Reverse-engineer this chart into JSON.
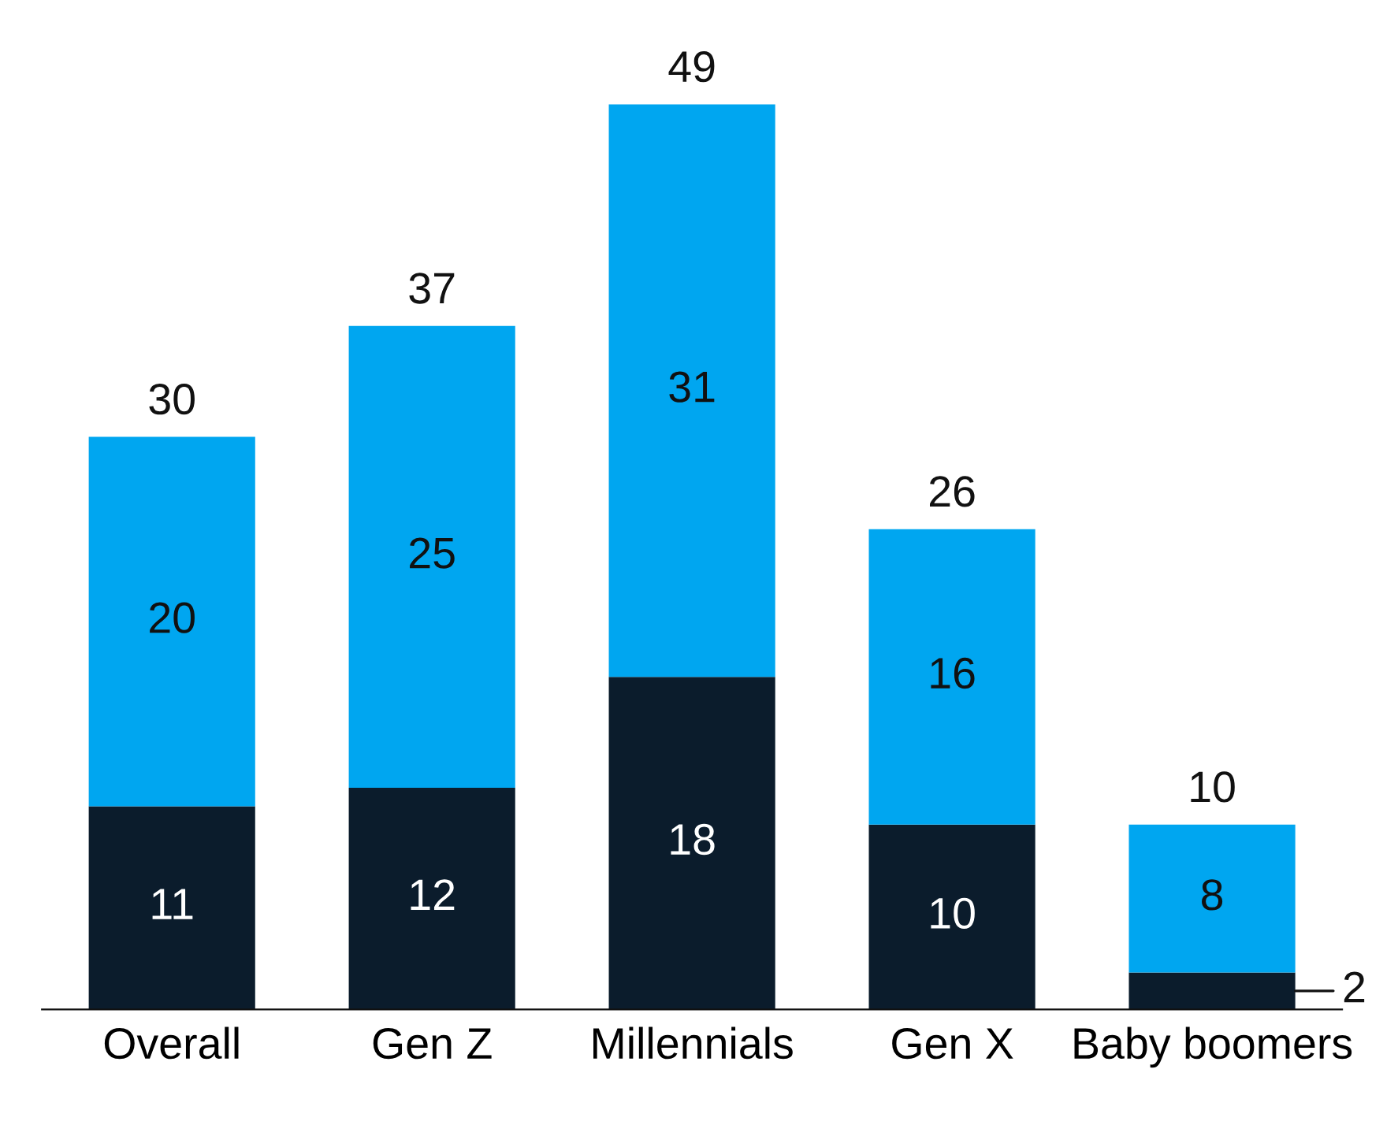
{
  "chart_data": {
    "type": "bar",
    "stacked": true,
    "categories": [
      "Overall",
      "Gen Z",
      "Millennials",
      "Gen X",
      "Baby boomers"
    ],
    "series": [
      {
        "color": "#0b1c2c",
        "values": [
          11,
          12,
          18,
          10,
          2
        ]
      },
      {
        "color": "#00a6f0",
        "values": [
          20,
          25,
          31,
          16,
          8
        ]
      }
    ],
    "data_labels": true,
    "totals": [
      "30",
      "37",
      "49",
      "26",
      "10"
    ],
    "grid": false,
    "legend": false
  }
}
